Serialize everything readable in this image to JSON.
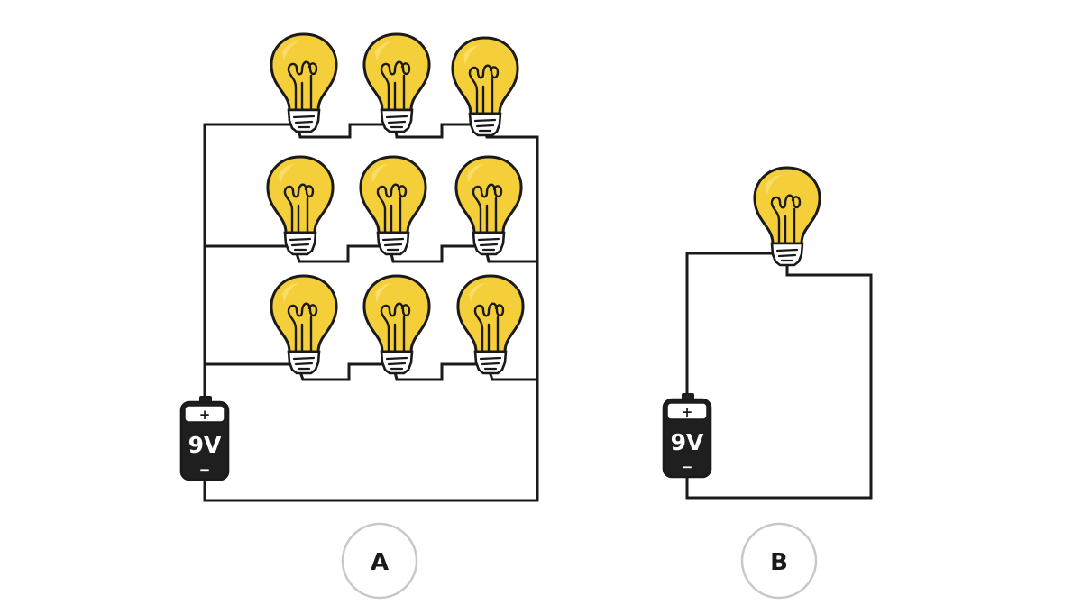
{
  "colors": {
    "bulb_glass": "#f5cf3a",
    "bulb_glass_highlight": "#fbe27a",
    "wire": "#1a1a1a",
    "battery_body": "#1f1f1f",
    "battery_band": "#ffffff",
    "label_ring": "#c8c8c8"
  },
  "circuits": [
    {
      "label": "A",
      "battery_label": "9V",
      "battery_plus": "+",
      "battery_minus": "−",
      "bulb_rows": 3,
      "bulbs_per_row": 3
    },
    {
      "label": "B",
      "battery_label": "9V",
      "battery_plus": "+",
      "battery_minus": "−",
      "bulb_rows": 1,
      "bulbs_per_row": 1
    }
  ]
}
